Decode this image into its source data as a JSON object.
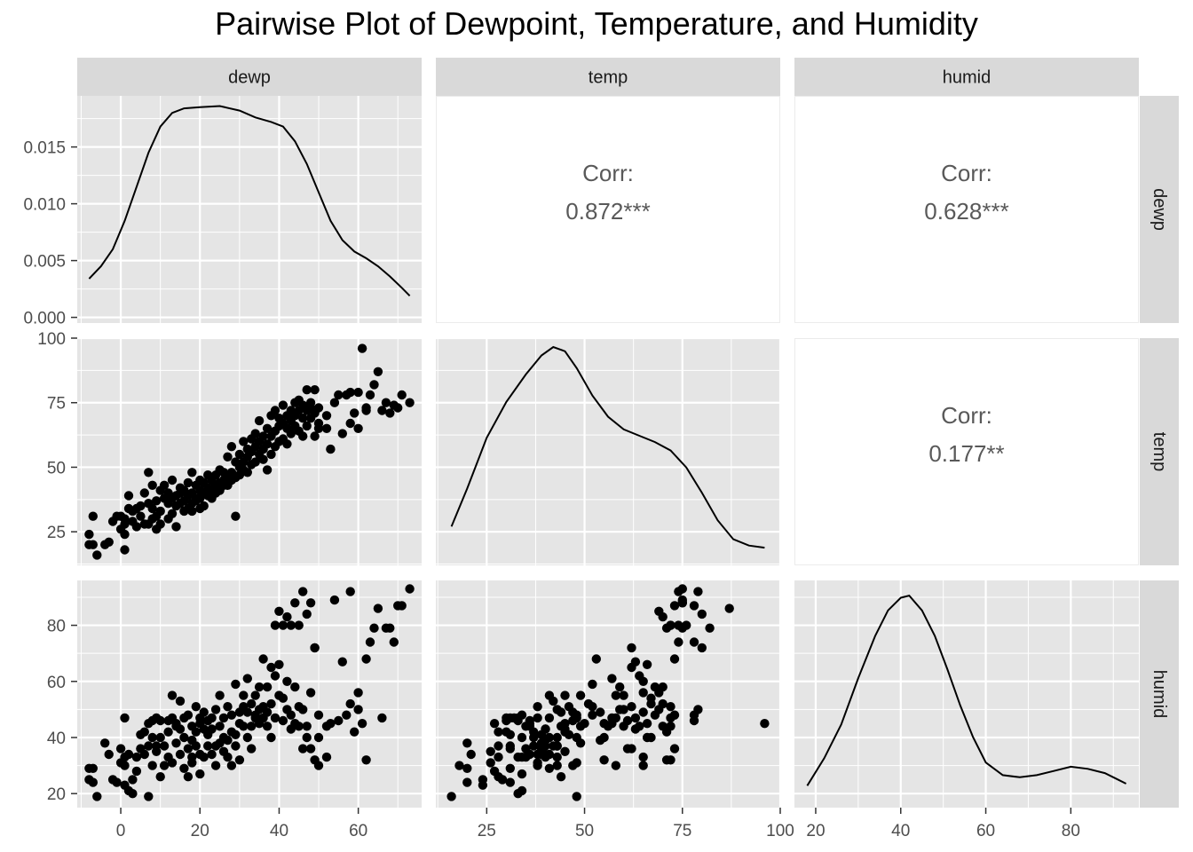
{
  "title": "Pairwise Plot of Dewpoint, Temperature, and Humidity",
  "variables": [
    "dewp",
    "temp",
    "humid"
  ],
  "colors": {
    "panel_bg": "#e5e5e5",
    "strip_bg": "#d9d9d9",
    "grid": "#ffffff",
    "point": "#000000",
    "corr_text": "#595959"
  },
  "chart_data": {
    "type": "scatter",
    "title": "Pairwise Plot of Dewpoint, Temperature, and Humidity",
    "grid": true,
    "axes": {
      "dewp": {
        "lim": [
          -11,
          76
        ],
        "ticks": [
          0,
          20,
          40,
          60
        ]
      },
      "temp": {
        "lim": [
          12,
          100
        ],
        "ticks": [
          25,
          50,
          75,
          100
        ],
        "row_ticks": [
          25,
          50,
          75,
          100
        ]
      },
      "humid": {
        "lim": [
          15,
          96
        ],
        "ticks": [
          20,
          40,
          60,
          80
        ]
      },
      "dewp_density": {
        "lim": [
          -0.0005,
          0.0195
        ],
        "ticks": [
          0.0,
          0.005,
          0.01,
          0.015
        ],
        "tick_labels": [
          "0.000",
          "0.005",
          "0.010",
          "0.015"
        ]
      }
    },
    "correlations": [
      {
        "row": "dewp",
        "col": "temp",
        "label": "Corr:",
        "value": "0.872***"
      },
      {
        "row": "dewp",
        "col": "humid",
        "label": "Corr:",
        "value": "0.628***"
      },
      {
        "row": "temp",
        "col": "humid",
        "label": "Corr:",
        "value": "0.177**"
      }
    ],
    "densities": {
      "dewp": [
        [
          -8,
          0.0034
        ],
        [
          -5,
          0.0045
        ],
        [
          -2,
          0.006
        ],
        [
          1,
          0.0085
        ],
        [
          4,
          0.0115
        ],
        [
          7,
          0.0145
        ],
        [
          10,
          0.0168
        ],
        [
          13,
          0.018
        ],
        [
          16,
          0.0184
        ],
        [
          20,
          0.0185
        ],
        [
          25,
          0.0186
        ],
        [
          30,
          0.0182
        ],
        [
          34,
          0.0176
        ],
        [
          38,
          0.0172
        ],
        [
          41,
          0.0168
        ],
        [
          44,
          0.0155
        ],
        [
          47,
          0.0135
        ],
        [
          50,
          0.011
        ],
        [
          53,
          0.0085
        ],
        [
          56,
          0.0068
        ],
        [
          59,
          0.0058
        ],
        [
          62,
          0.0052
        ],
        [
          65,
          0.0045
        ],
        [
          68,
          0.0036
        ],
        [
          71,
          0.0026
        ],
        [
          73,
          0.0019
        ]
      ],
      "temp": [
        [
          16,
          0.15
        ],
        [
          20,
          0.33
        ],
        [
          25,
          0.57
        ],
        [
          30,
          0.74
        ],
        [
          35,
          0.87
        ],
        [
          39,
          0.96
        ],
        [
          42,
          1.0
        ],
        [
          45,
          0.98
        ],
        [
          48,
          0.9
        ],
        [
          52,
          0.77
        ],
        [
          56,
          0.67
        ],
        [
          60,
          0.61
        ],
        [
          64,
          0.58
        ],
        [
          68,
          0.55
        ],
        [
          72,
          0.51
        ],
        [
          76,
          0.43
        ],
        [
          80,
          0.31
        ],
        [
          84,
          0.18
        ],
        [
          88,
          0.09
        ],
        [
          92,
          0.06
        ],
        [
          96,
          0.05
        ]
      ],
      "humid": [
        [
          18,
          0.07
        ],
        [
          22,
          0.2
        ],
        [
          26,
          0.36
        ],
        [
          30,
          0.58
        ],
        [
          34,
          0.78
        ],
        [
          37,
          0.9
        ],
        [
          40,
          0.96
        ],
        [
          42,
          0.97
        ],
        [
          45,
          0.9
        ],
        [
          48,
          0.78
        ],
        [
          51,
          0.62
        ],
        [
          54,
          0.45
        ],
        [
          57,
          0.3
        ],
        [
          60,
          0.18
        ],
        [
          64,
          0.12
        ],
        [
          68,
          0.11
        ],
        [
          72,
          0.12
        ],
        [
          76,
          0.14
        ],
        [
          80,
          0.16
        ],
        [
          84,
          0.15
        ],
        [
          88,
          0.13
        ],
        [
          91,
          0.1
        ],
        [
          93,
          0.08
        ]
      ]
    },
    "points": [
      [
        -8,
        20,
        29
      ],
      [
        -8,
        24,
        25
      ],
      [
        -7,
        20,
        24
      ],
      [
        -7,
        31,
        29
      ],
      [
        -6,
        16,
        19
      ],
      [
        -4,
        20,
        38
      ],
      [
        -3,
        21,
        34
      ],
      [
        -2,
        29,
        25
      ],
      [
        -1,
        31,
        24
      ],
      [
        0,
        26,
        31
      ],
      [
        0,
        31,
        36
      ],
      [
        1,
        30,
        47
      ],
      [
        1,
        28,
        33
      ],
      [
        1,
        24,
        23
      ],
      [
        1,
        18,
        30
      ],
      [
        2,
        34,
        21
      ],
      [
        2,
        39,
        34
      ],
      [
        3,
        29,
        25
      ],
      [
        3,
        33,
        20
      ],
      [
        4,
        34,
        33
      ],
      [
        4,
        27,
        28
      ],
      [
        5,
        31,
        41
      ],
      [
        5,
        35,
        36
      ],
      [
        6,
        28,
        42
      ],
      [
        6,
        40,
        34
      ],
      [
        7,
        28,
        37
      ],
      [
        7,
        36,
        45
      ],
      [
        7,
        48,
        19
      ],
      [
        8,
        30,
        46
      ],
      [
        8,
        34,
        40
      ],
      [
        8,
        43,
        30
      ],
      [
        9,
        31,
        47
      ],
      [
        9,
        37,
        37
      ],
      [
        9,
        26,
        35
      ],
      [
        10,
        33,
        46
      ],
      [
        10,
        28,
        26
      ],
      [
        10,
        41,
        40
      ],
      [
        11,
        38,
        30
      ],
      [
        11,
        43,
        37
      ],
      [
        12,
        30,
        42
      ],
      [
        12,
        36,
        46
      ],
      [
        12,
        40,
        33
      ],
      [
        13,
        32,
        47
      ],
      [
        13,
        38,
        31
      ],
      [
        13,
        45,
        55
      ],
      [
        14,
        35,
        44
      ],
      [
        14,
        39,
        38
      ],
      [
        14,
        27,
        45
      ],
      [
        15,
        36,
        34
      ],
      [
        15,
        40,
        43
      ],
      [
        15,
        42,
        53
      ],
      [
        16,
        33,
        47
      ],
      [
        16,
        37,
        40
      ],
      [
        16,
        41,
        29
      ],
      [
        17,
        34,
        48
      ],
      [
        17,
        39,
        36
      ],
      [
        17,
        44,
        26
      ],
      [
        18,
        36,
        44
      ],
      [
        18,
        40,
        39
      ],
      [
        18,
        33,
        33
      ],
      [
        18,
        48,
        31
      ],
      [
        19,
        38,
        51
      ],
      [
        19,
        43,
        37
      ],
      [
        19,
        37,
        42
      ],
      [
        20,
        38,
        47
      ],
      [
        20,
        41,
        34
      ],
      [
        20,
        45,
        45
      ],
      [
        20,
        34,
        27
      ],
      [
        21,
        40,
        43
      ],
      [
        21,
        44,
        49
      ],
      [
        21,
        35,
        33
      ],
      [
        22,
        39,
        41
      ],
      [
        22,
        42,
        37
      ],
      [
        22,
        47,
        46
      ],
      [
        23,
        41,
        47
      ],
      [
        23,
        45,
        43
      ],
      [
        23,
        38,
        34
      ],
      [
        24,
        43,
        50
      ],
      [
        24,
        40,
        37
      ],
      [
        24,
        47,
        30
      ],
      [
        25,
        44,
        44
      ],
      [
        25,
        49,
        38
      ],
      [
        25,
        41,
        55
      ],
      [
        26,
        43,
        40
      ],
      [
        26,
        48,
        47
      ],
      [
        26,
        45,
        35
      ],
      [
        27,
        46,
        51
      ],
      [
        27,
        54,
        39
      ],
      [
        27,
        43,
        33
      ],
      [
        28,
        48,
        48
      ],
      [
        28,
        45,
        42
      ],
      [
        28,
        58,
        30
      ],
      [
        29,
        46,
        41
      ],
      [
        29,
        31,
        37
      ],
      [
        29,
        52,
        59
      ],
      [
        30,
        47,
        49
      ],
      [
        30,
        50,
        45
      ],
      [
        30,
        55,
        32
      ],
      [
        31,
        52,
        51
      ],
      [
        31,
        60,
        44
      ],
      [
        31,
        49,
        55
      ],
      [
        32,
        54,
        49
      ],
      [
        32,
        48,
        40
      ],
      [
        32,
        57,
        61
      ],
      [
        33,
        56,
        44
      ],
      [
        33,
        51,
        52
      ],
      [
        33,
        61,
        36
      ],
      [
        34,
        58,
        55
      ],
      [
        34,
        52,
        48
      ],
      [
        34,
        63,
        47
      ],
      [
        35,
        60,
        50
      ],
      [
        35,
        55,
        45
      ],
      [
        35,
        68,
        58
      ],
      [
        36,
        57,
        47
      ],
      [
        36,
        62,
        51
      ],
      [
        36,
        53,
        68
      ],
      [
        37,
        65,
        49
      ],
      [
        37,
        59,
        58
      ],
      [
        37,
        49,
        44
      ],
      [
        38,
        62,
        65
      ],
      [
        38,
        55,
        40
      ],
      [
        38,
        70,
        52
      ],
      [
        39,
        64,
        62
      ],
      [
        39,
        58,
        47
      ],
      [
        39,
        72,
        80
      ],
      [
        40,
        66,
        66
      ],
      [
        40,
        60,
        55
      ],
      [
        40,
        69,
        85
      ],
      [
        41,
        67,
        54
      ],
      [
        41,
        61,
        46
      ],
      [
        41,
        74,
        80
      ],
      [
        42,
        65,
        60
      ],
      [
        42,
        59,
        50
      ],
      [
        42,
        70,
        83
      ],
      [
        43,
        68,
        48
      ],
      [
        43,
        63,
        43
      ],
      [
        43,
        72,
        80
      ],
      [
        44,
        70,
        58
      ],
      [
        44,
        66,
        45
      ],
      [
        44,
        75,
        88
      ],
      [
        45,
        72,
        51
      ],
      [
        45,
        64,
        44
      ],
      [
        45,
        76,
        80
      ],
      [
        46,
        69,
        50
      ],
      [
        46,
        62,
        36
      ],
      [
        46,
        74,
        92
      ],
      [
        47,
        72,
        44
      ],
      [
        47,
        66,
        40
      ],
      [
        47,
        80,
        84
      ],
      [
        48,
        69,
        56
      ],
      [
        48,
        73,
        36
      ],
      [
        48,
        75,
        88
      ],
      [
        49,
        71,
        32
      ],
      [
        49,
        62,
        72
      ],
      [
        49,
        80,
        72
      ],
      [
        50,
        67,
        40
      ],
      [
        50,
        73,
        48
      ],
      [
        50,
        65,
        30
      ],
      [
        52,
        65,
        33
      ],
      [
        52,
        70,
        44
      ],
      [
        53,
        57,
        45
      ],
      [
        54,
        75,
        89
      ],
      [
        55,
        78,
        46
      ],
      [
        56,
        63,
        67
      ],
      [
        57,
        78,
        48
      ],
      [
        58,
        67,
        52
      ],
      [
        58,
        79,
        92
      ],
      [
        59,
        71,
        42
      ],
      [
        60,
        79,
        50
      ],
      [
        60,
        65,
        56
      ],
      [
        61,
        96,
        45
      ],
      [
        62,
        73,
        68
      ],
      [
        62,
        72,
        32
      ],
      [
        63,
        78,
        74
      ],
      [
        64,
        82,
        79
      ],
      [
        65,
        87,
        86
      ],
      [
        66,
        72,
        47
      ],
      [
        67,
        75,
        79
      ],
      [
        68,
        71,
        79
      ],
      [
        69,
        74,
        74
      ],
      [
        70,
        73,
        87
      ],
      [
        71,
        78,
        87
      ],
      [
        73,
        75,
        93
      ]
    ]
  }
}
